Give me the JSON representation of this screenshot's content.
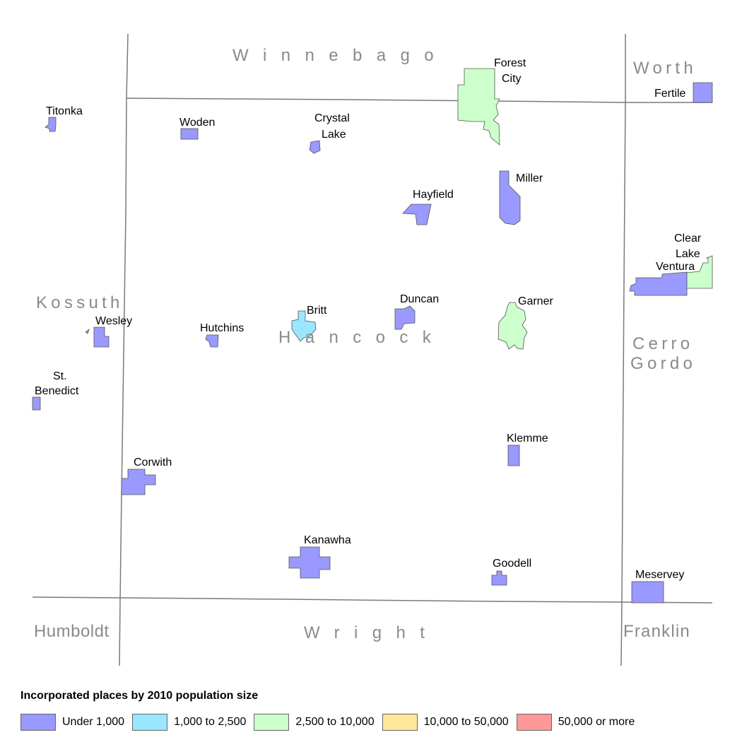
{
  "map": {
    "counties": [
      {
        "id": "winnebago",
        "name": "Winnebago"
      },
      {
        "id": "worth",
        "name": "Worth"
      },
      {
        "id": "kossuth",
        "name": "Kossuth"
      },
      {
        "id": "hancock",
        "name": "Hancock"
      },
      {
        "id": "cerro-gordo-1",
        "name": "Cerro"
      },
      {
        "id": "cerro-gordo-2",
        "name": "Gordo"
      },
      {
        "id": "humboldt",
        "name": "Humboldt"
      },
      {
        "id": "wright",
        "name": "Wright"
      },
      {
        "id": "franklin",
        "name": "Franklin"
      }
    ],
    "places": [
      {
        "id": "titonka",
        "lines": [
          "Titonka"
        ],
        "category": "Under 1,000"
      },
      {
        "id": "woden",
        "lines": [
          "Woden"
        ],
        "category": "Under 1,000"
      },
      {
        "id": "crystal-lake",
        "lines": [
          "Crystal",
          "Lake"
        ],
        "category": "Under 1,000"
      },
      {
        "id": "forest-city",
        "lines": [
          "Forest",
          "City"
        ],
        "category": "2,500 to 10,000"
      },
      {
        "id": "fertile",
        "lines": [
          "Fertile"
        ],
        "category": "Under 1,000"
      },
      {
        "id": "miller",
        "lines": [
          "Miller"
        ],
        "category": "Under 1,000"
      },
      {
        "id": "hayfield",
        "lines": [
          "Hayfield"
        ],
        "category": "Under 1,000"
      },
      {
        "id": "clear-lake",
        "lines": [
          "Clear",
          "Lake"
        ],
        "category": "2,500 to 10,000"
      },
      {
        "id": "ventura",
        "lines": [
          "Ventura"
        ],
        "category": "Under 1,000"
      },
      {
        "id": "wesley",
        "lines": [
          "Wesley"
        ],
        "category": "Under 1,000"
      },
      {
        "id": "hutchins",
        "lines": [
          "Hutchins"
        ],
        "category": "Under 1,000"
      },
      {
        "id": "britt",
        "lines": [
          "Britt"
        ],
        "category": "1,000 to 2,500"
      },
      {
        "id": "duncan",
        "lines": [
          "Duncan"
        ],
        "category": "Under 1,000"
      },
      {
        "id": "garner",
        "lines": [
          "Garner"
        ],
        "category": "2,500 to 10,000"
      },
      {
        "id": "st-benedict",
        "lines": [
          "St.",
          "Benedict"
        ],
        "category": "Under 1,000"
      },
      {
        "id": "klemme",
        "lines": [
          "Klemme"
        ],
        "category": "Under 1,000"
      },
      {
        "id": "corwith",
        "lines": [
          "Corwith"
        ],
        "category": "Under 1,000"
      },
      {
        "id": "kanawha",
        "lines": [
          "Kanawha"
        ],
        "category": "Under 1,000"
      },
      {
        "id": "goodell",
        "lines": [
          "Goodell"
        ],
        "category": "Under 1,000"
      },
      {
        "id": "meservey",
        "lines": [
          "Meservey"
        ],
        "category": "Under 1,000"
      }
    ]
  },
  "legend": {
    "title": "Incorporated places by 2010 population size",
    "items": [
      {
        "label": "Under 1,000",
        "color": "#9999ff"
      },
      {
        "label": "1,000 to 2,500",
        "color": "#99e6ff"
      },
      {
        "label": "2,500 to 10,000",
        "color": "#ccffcc"
      },
      {
        "label": "10,000 to 50,000",
        "color": "#ffe699"
      },
      {
        "label": "50,000 or more",
        "color": "#ff9999"
      }
    ]
  }
}
